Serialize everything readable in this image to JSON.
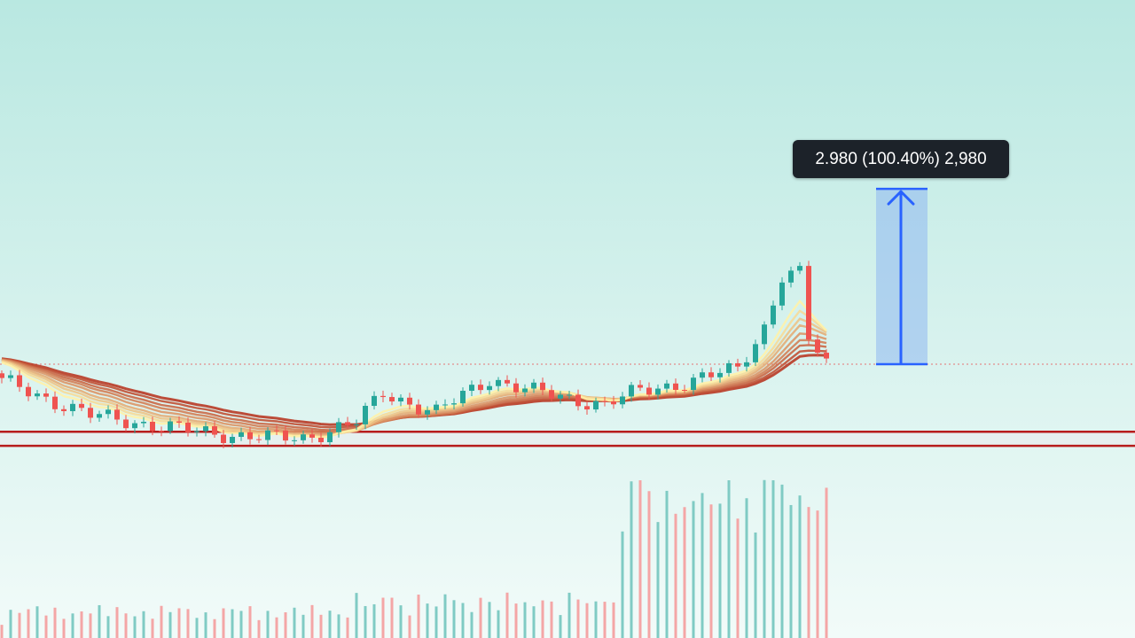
{
  "colors": {
    "background_top": "#b9e8e1",
    "background_bottom": "#f2fbf9",
    "up": "#26a69a",
    "down": "#ef5350",
    "volume_up": "#80cbc4",
    "volume_down": "#f4a6a6",
    "support_line": "#b71c1c",
    "reference_line": "#e57373",
    "measure_line": "#2962ff",
    "measure_fill": "#90b8f0",
    "ribbon_outer": "#b83a25",
    "ribbon_inner": "#fff2a8",
    "tooltip_bg": "#1c2229"
  },
  "measure_tool": {
    "label": "2.980 (100.40%) 2,980",
    "icon": "arrow-up-icon"
  },
  "chart_data": {
    "type": "candlestick",
    "title": "",
    "xlabel": "",
    "ylabel": "",
    "ylim": [
      1.0,
      7.5
    ],
    "grid": false,
    "axes_visible": false,
    "reference_level": 2.968,
    "support_zone": [
      1.58,
      1.82
    ],
    "measure": {
      "from": 2.968,
      "to": 5.948,
      "change": 2.98,
      "percent": 100.4
    },
    "ema_ribbon_count": 9,
    "candles": []
  }
}
